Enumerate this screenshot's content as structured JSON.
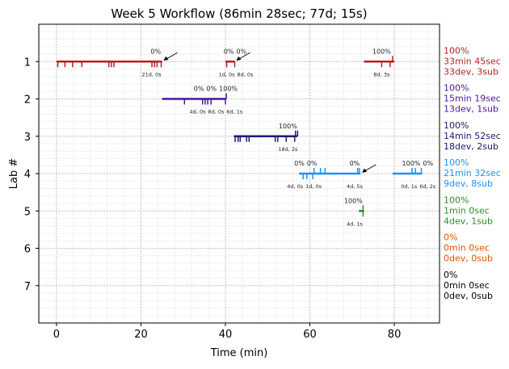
{
  "chart_data": {
    "type": "gantt-timeline",
    "title": "Week 5 Workflow (86min 28sec; 77d; 15s)",
    "xlabel": "Time (min)",
    "ylabel": "Lab #",
    "xlim": [
      -4.2,
      90.7
    ],
    "ylim": [
      8,
      0
    ],
    "xticks": [
      0,
      20,
      40,
      60,
      80
    ],
    "yticks": [
      1,
      2,
      3,
      4,
      5,
      6,
      7
    ],
    "grid": true,
    "labs": [
      {
        "lab": 1,
        "color": "#b22222",
        "segments": [
          [
            0,
            25
          ],
          [
            40,
            42.2
          ],
          [
            72.8,
            80
          ]
        ],
        "down_ticks": [
          0.3,
          2,
          3.8,
          6,
          12.4,
          13,
          13.6,
          22.6,
          23.2,
          23.8,
          24.8,
          40.3,
          42.2,
          77,
          79
        ],
        "up_ticks": [
          79.6
        ],
        "top_labels": [
          {
            "x": 23.5,
            "text": "0%"
          },
          {
            "x": 40.8,
            "text": "0%"
          },
          {
            "x": 41.5,
            "text": "0%"
          },
          {
            "x": 77,
            "text": "100%"
          }
        ],
        "bottom_labels": [
          {
            "x": 22.5,
            "text": "21d, 0s"
          },
          {
            "x": 40.3,
            "text": "1d, 0s"
          },
          {
            "x": 41.5,
            "text": "8d, 0s"
          },
          {
            "x": 77,
            "text": "8d, 3s"
          }
        ],
        "arrows": [
          25,
          42.2
        ],
        "summary": [
          "100%",
          "33min 45sec",
          "33dev, 3sub"
        ]
      },
      {
        "lab": 2,
        "color": "#4b159c",
        "segments": [
          [
            25,
            40.2
          ]
        ],
        "down_ticks": [
          30.3,
          34.6,
          35.2,
          35.8,
          36.6,
          40
        ],
        "up_ticks": [
          40.2
        ],
        "top_labels": [
          {
            "x": 33.7,
            "text": "0%"
          },
          {
            "x": 35.2,
            "text": "0%"
          },
          {
            "x": 37.8,
            "text": "100%"
          }
        ],
        "bottom_labels": [
          {
            "x": 33.4,
            "text": "4d, 0s"
          },
          {
            "x": 35,
            "text": "8d, 0s"
          },
          {
            "x": 38,
            "text": "6d, 1s"
          }
        ],
        "arrows": [],
        "summary": [
          "100%",
          "15min 19sec",
          "13dev, 1sub"
        ]
      },
      {
        "lab": 3,
        "color": "#1a1a72",
        "segments": [
          [
            42,
            57
          ]
        ],
        "down_ticks": [
          42.3,
          43,
          43.5,
          45,
          45.6,
          51.8,
          52.4,
          54.4,
          56.4
        ],
        "up_ticks": [
          56.6,
          57.1
        ],
        "top_labels": [
          {
            "x": 54.8,
            "text": "100%"
          }
        ],
        "bottom_labels": [
          {
            "x": 54.8,
            "text": "18d, 2s"
          }
        ],
        "arrows": [],
        "summary": [
          "100%",
          "14min 52sec",
          "18dev, 2sub"
        ]
      },
      {
        "lab": 4,
        "color": "#1e90ff",
        "segments": [
          [
            57.4,
            72
          ],
          [
            79.6,
            86.6
          ]
        ],
        "down_ticks": [
          58.4,
          59.3,
          60.7
        ],
        "up_ticks": [
          61,
          62.5,
          63.6,
          71.3,
          71.7,
          84.2,
          85,
          86.4
        ],
        "top_labels": [
          {
            "x": 57.5,
            "text": "0%"
          },
          {
            "x": 58.3,
            "text": "0%"
          },
          {
            "x": 70.6,
            "text": "0%"
          },
          {
            "x": 84,
            "text": "100%"
          },
          {
            "x": 84.8,
            "text": "0%"
          }
        ],
        "bottom_labels": [
          {
            "x": 56.5,
            "text": "4d, 0s"
          },
          {
            "x": 57.8,
            "text": "1d, 0s"
          },
          {
            "x": 70.6,
            "text": "4d, 5s"
          },
          {
            "x": 83.5,
            "text": "0d, 1s"
          },
          {
            "x": 84.8,
            "text": "6d, 2s"
          }
        ],
        "arrows": [
          72
        ],
        "summary": [
          "100%",
          "21min 32sec",
          "9dev, 8sub"
        ]
      },
      {
        "lab": 5,
        "color": "#2e8b2e",
        "segments": [
          [
            71.6,
            72.8
          ]
        ],
        "down_ticks": [
          72.6
        ],
        "up_ticks": [
          72.6
        ],
        "top_labels": [
          {
            "x": 70.3,
            "text": "100%"
          }
        ],
        "bottom_labels": [
          {
            "x": 70.6,
            "text": "4d, 1s"
          }
        ],
        "arrows": [],
        "summary": [
          "100%",
          "1min 0sec",
          "4dev, 1sub"
        ]
      },
      {
        "lab": 6,
        "color": "#e65100",
        "segments": [],
        "down_ticks": [],
        "up_ticks": [],
        "top_labels": [],
        "bottom_labels": [],
        "arrows": [],
        "summary": [
          "0%",
          "0min 0sec",
          "0dev, 0sub"
        ]
      },
      {
        "lab": 7,
        "color": "#000000",
        "segments": [],
        "down_ticks": [],
        "up_ticks": [],
        "top_labels": [],
        "bottom_labels": [],
        "arrows": [],
        "summary": [
          "0%",
          "0min 0sec",
          "0dev, 0sub"
        ]
      }
    ]
  }
}
